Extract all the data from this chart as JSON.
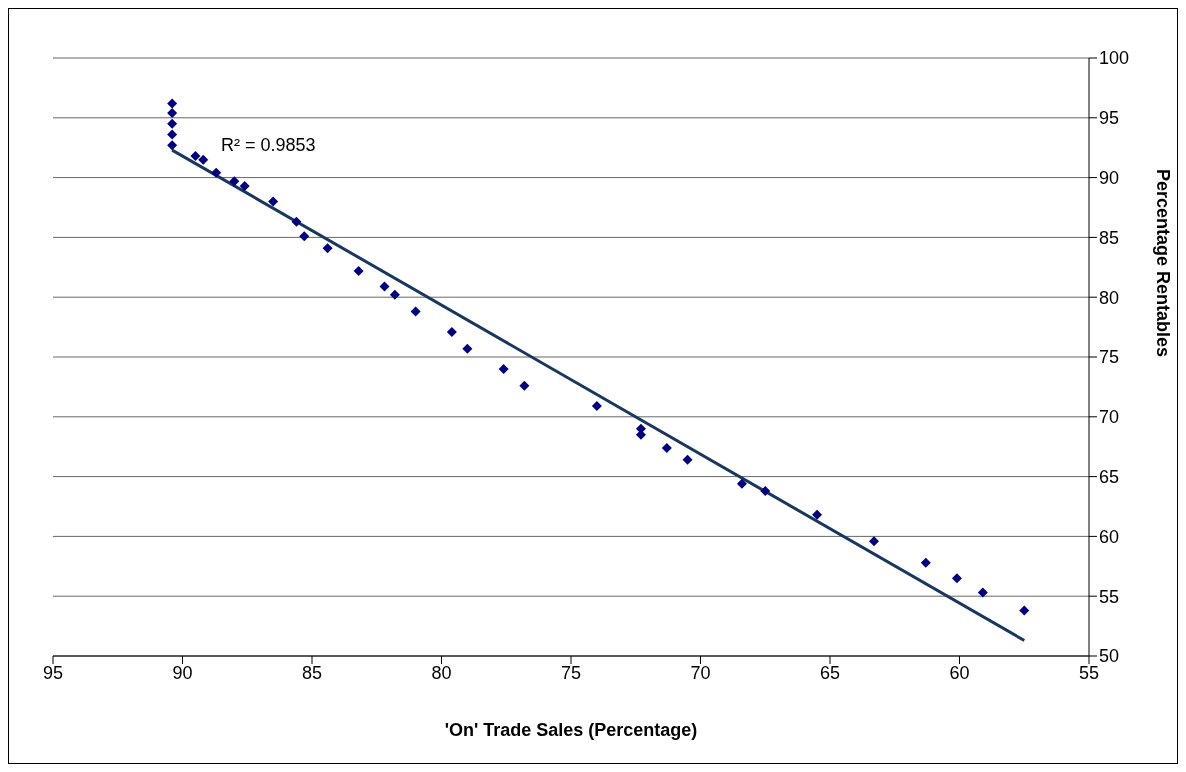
{
  "chart_data": {
    "type": "scatter",
    "xlabel": "'On' Trade Sales (Percentage)",
    "ylabel": "Percentage Rentables",
    "xlim": [
      95,
      55
    ],
    "xticks": [
      95,
      90,
      85,
      80,
      75,
      70,
      65,
      60,
      55
    ],
    "ylim": [
      50,
      100
    ],
    "yticks": [
      50,
      55,
      60,
      65,
      70,
      75,
      80,
      85,
      90,
      95,
      100
    ],
    "grid": "y",
    "legend": false,
    "annotations": [
      "R² = 0.9853"
    ],
    "series": [
      {
        "marker": "diamond",
        "color": "#000080",
        "x": [
          90.4,
          90.4,
          90.4,
          90.4,
          90.4,
          89.5,
          89.2,
          88.7,
          88.0,
          87.6,
          86.5,
          85.6,
          85.3,
          84.4,
          83.2,
          82.2,
          81.8,
          81.0,
          79.6,
          79.0,
          77.6,
          76.8,
          74.0,
          72.3,
          72.3,
          71.3,
          70.5,
          68.4,
          67.5,
          65.5,
          63.3,
          61.3,
          60.1,
          59.1,
          57.5
        ],
        "values": [
          96.2,
          95.4,
          94.5,
          93.6,
          92.7,
          91.8,
          91.5,
          90.4,
          89.7,
          89.3,
          88.0,
          86.3,
          85.1,
          84.1,
          82.2,
          80.9,
          80.2,
          78.8,
          77.1,
          75.7,
          74.0,
          72.6,
          70.9,
          69.0,
          68.5,
          67.4,
          66.4,
          64.4,
          63.8,
          61.8,
          59.6,
          57.8,
          56.5,
          55.3,
          53.8
        ]
      },
      {
        "type": "line",
        "color": "#17375e",
        "line_style": "solid",
        "x": [
          90.4,
          57.5
        ],
        "values": [
          92.3,
          51.3
        ]
      }
    ]
  }
}
